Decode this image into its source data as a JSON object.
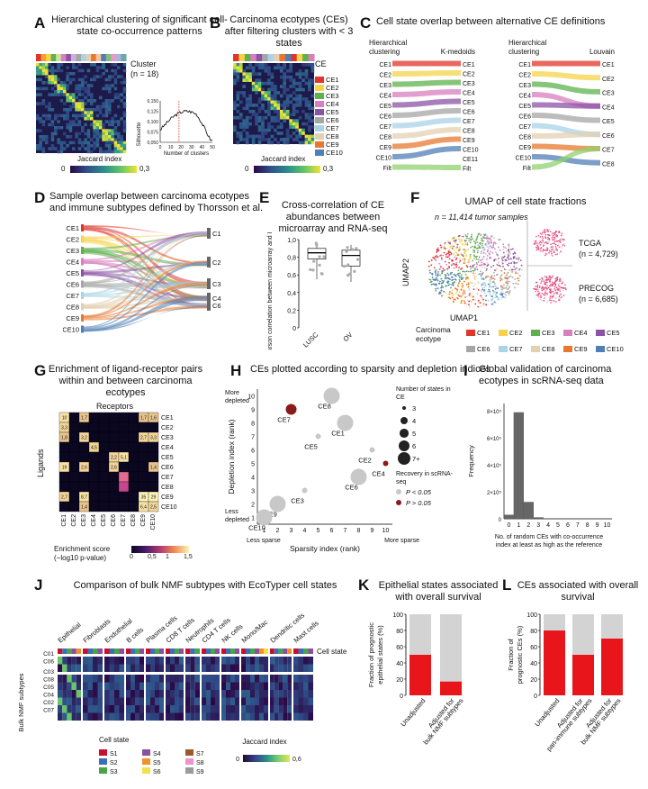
{
  "panels": {
    "A": {
      "letter": "A",
      "title": "Hierarchical clustering of significant cell-state co-occurrence patterns",
      "cluster_label": "Cluster",
      "n_label": "(n = 18)",
      "cbar_label": "Jaccard index",
      "cbar_min": "0",
      "cbar_max": "0,3",
      "inset": {
        "ylabel": "Silhouette",
        "xlabel": "Number of clusters",
        "yticks": [
          "0,150",
          "0,125",
          "0,100",
          "0,075",
          "0,050"
        ],
        "xticks": [
          "0",
          "10",
          "20",
          "30",
          "40",
          "50"
        ]
      }
    },
    "B": {
      "letter": "B",
      "title": "Carcinoma ecotypes (CEs) after filtering clusters with < 3 states",
      "ce_label": "CE",
      "cbar_label": "Jaccard index",
      "cbar_min": "0",
      "cbar_max": "0,3",
      "legend": [
        "CE1",
        "CE2",
        "CE3",
        "CE4",
        "CE5",
        "CE6",
        "CE7",
        "CE8",
        "CE9",
        "CE10"
      ]
    },
    "C": {
      "letter": "C",
      "title": "Cell state overlap between alternative CE definitions",
      "left": {
        "hdr_left": "Hierarchical clustering",
        "hdr_right": "K-medoids",
        "labels_left": [
          "CE1",
          "CE2",
          "CE3",
          "CE4",
          "CE5",
          "CE6",
          "CE7",
          "CE8",
          "CE9",
          "CE10",
          "Filt"
        ],
        "labels_right": [
          "CE1",
          "CE2",
          "CE3",
          "CE4",
          "CE5",
          "CE6",
          "CE7",
          "CE8",
          "CE9",
          "CE10",
          "CE11",
          "Filt"
        ]
      },
      "right": {
        "hdr_left": "Hierarchical clustering",
        "hdr_right": "Louvain",
        "labels_left": [
          "CE1",
          "CE2",
          "CE3",
          "CE4",
          "CE5",
          "CE6",
          "CE7",
          "CE8",
          "CE9",
          "CE10",
          "Filt"
        ],
        "labels_right": [
          "CE1",
          "CE2",
          "CE3",
          "CE4",
          "CE5",
          "CE6",
          "CE7",
          "CE8"
        ]
      }
    },
    "D": {
      "letter": "D",
      "title": "Sample overlap between carcinoma ecotypes and immune subtypes defined by Thorsson et al.",
      "labels_left": [
        "CE1",
        "CE2",
        "CE3",
        "CE4",
        "CE5",
        "CE6",
        "CE7",
        "CE8",
        "CE9",
        "CE10"
      ],
      "labels_right": [
        "C1",
        "C2",
        "C3",
        "C4",
        "C6"
      ]
    },
    "E": {
      "letter": "E",
      "title": "Cross-correlation of CE abundances between microarray and RNA-seq",
      "ylabel": "Pearson correlation between microarray and RNA-seq",
      "yticks": [
        "1,0",
        "0,8",
        "0,6",
        "0,4",
        "0,2",
        "0"
      ],
      "categories": [
        "LUSC",
        "OV"
      ]
    },
    "F": {
      "letter": "F",
      "title": "UMAP of cell state fractions",
      "n_label": "n = 11,414 tumor samples",
      "xlabel": "UMAP1",
      "ylabel": "UMAP2",
      "tcga": "TCGA",
      "tcga_n": "(n = 4,729)",
      "precog": "PRECOG",
      "precog_n": "(n = 6,685)",
      "legend_title": "Carcinoma ecotype",
      "legend": [
        "CE1",
        "CE2",
        "CE3",
        "CE4",
        "CE5",
        "CE6",
        "CE7",
        "CE8",
        "CE9",
        "CE10"
      ]
    },
    "G": {
      "letter": "G",
      "title": "Enrichment of ligand-receptor pairs within and between carcinoma ecotypes",
      "receptors": "Receptors",
      "ligands": "Ligands",
      "rows": [
        "CE1",
        "CE2",
        "CE3",
        "CE4",
        "CE5",
        "CE6",
        "CE7",
        "CE8",
        "CE9",
        "CE10"
      ],
      "cols": [
        "CE1",
        "CE2",
        "CE3",
        "CE4",
        "CE5",
        "CE6",
        "CE7",
        "CE8",
        "CE9",
        "CE10"
      ],
      "cbar_title": "Enrichment score",
      "cbar_sub": "(−log10 p-value)",
      "cbar_ticks": [
        "0",
        "0,5",
        "1",
        "1,5"
      ]
    },
    "H": {
      "letter": "H",
      "title": "CEs plotted according to sparsity and depletion indices",
      "xlabel": "Sparsity index (rank)",
      "ylabel": "Depletion index (rank)",
      "more_depleted": "More depleted",
      "less_depleted": "Less depleted",
      "less_sparse": "Less sparse",
      "more_sparse": "More sparse",
      "size_legend_title": "Number of states in CE",
      "size_legend": [
        "3",
        "4",
        "5",
        "6",
        "7+"
      ],
      "recovery_title": "Recovery in scRNA-seq",
      "recovery": [
        "P < 0.05",
        "P > 0.05"
      ]
    },
    "I": {
      "letter": "I",
      "title": "Global validation of carcinoma ecotypes in scRNA-seq data",
      "ylabel": "Frequency",
      "xlabel": "No. of random CEs with co-occurrence index at least as high as the reference",
      "yticks": [
        "8×10⁵",
        "6×10⁵",
        "4×10⁵",
        "2×10⁵",
        "0"
      ],
      "xticks": [
        "0",
        "1",
        "2",
        "3",
        "4",
        "5",
        "6",
        "7",
        "8",
        "9",
        "10"
      ]
    },
    "J": {
      "letter": "J",
      "title": "Comparison of bulk NMF subtypes with EcoTyper cell states",
      "ylabel": "Bulk NMF subtypes",
      "rows": [
        "C01",
        "C06",
        "C03",
        "C08",
        "C05",
        "C04",
        "C02",
        "C07"
      ],
      "cell_types": [
        "Epithelial",
        "Fibroblasts",
        "Endothelial",
        "B cells",
        "Plasma cells",
        "CD8 T cells",
        "Neutrophils",
        "CD4 T cells",
        "NK cells",
        "Mono/Mac",
        "Dendritic cells",
        "Mast cells"
      ],
      "cell_state": "Cell state",
      "legend_title": "Cell state",
      "states": [
        "S1",
        "S2",
        "S3",
        "S4",
        "S5",
        "S6",
        "S7",
        "S8",
        "S9"
      ],
      "cbar_label": "Jaccard index",
      "cbar_min": "0",
      "cbar_max": "0,6"
    },
    "K": {
      "letter": "K",
      "title": "Epithelial states associated with overall survival",
      "ylabel": "Fraction of prognostic epithelial states (%)",
      "yticks": [
        "100",
        "80",
        "60",
        "40",
        "20",
        "0"
      ],
      "categories": [
        "Unadjusted",
        "Adjusted for bulk NMF subtypes"
      ]
    },
    "L": {
      "letter": "L",
      "title": "CEs associated with overall survival",
      "ylabel": "Fraction of prognostic CEs (%)",
      "yticks": [
        "100",
        "80",
        "60",
        "40",
        "20",
        "0"
      ],
      "categories": [
        "Unadjusted",
        "Adjusted for pan-immune subtypes",
        "Adjusted for bulk NMF subtypes"
      ]
    }
  },
  "colors": {
    "CE1": "#e0352b",
    "CE2": "#f5d34b",
    "CE3": "#5fb14f",
    "CE4": "#d77fbf",
    "CE5": "#8b53a6",
    "CE6": "#a6a6a6",
    "CE7": "#a9d3e7",
    "CE8": "#e3d0b1",
    "CE9": "#e8782f",
    "CE10": "#4f7fb5",
    "S1": "#c8102e",
    "S2": "#3c6fb6",
    "S3": "#4aa44a",
    "S4": "#8a4fa1",
    "S5": "#f0922a",
    "S6": "#f2df4b",
    "S7": "#9b5a2a",
    "S8": "#ef93c8",
    "S9": "#9a9a9a"
  },
  "chart_data": [
    {
      "panel": "E",
      "type": "box",
      "categories": [
        "LUSC",
        "OV"
      ],
      "ylim": [
        0,
        1.0
      ],
      "medians": [
        0.85,
        0.82
      ]
    },
    {
      "panel": "H",
      "type": "scatter",
      "xlim": [
        1,
        10
      ],
      "ylim": [
        1,
        10
      ],
      "points": [
        {
          "label": "CE1",
          "x": 7,
          "y": 8,
          "states": "7+",
          "recovery": "P < 0.05"
        },
        {
          "label": "CE2",
          "x": 9,
          "y": 6,
          "states": "3",
          "recovery": "P < 0.05"
        },
        {
          "label": "CE3",
          "x": 4,
          "y": 3,
          "states": "3",
          "recovery": "P < 0.05"
        },
        {
          "label": "CE4",
          "x": 10,
          "y": 5,
          "states": "3",
          "recovery": "P > 0.05"
        },
        {
          "label": "CE5",
          "x": 5,
          "y": 7,
          "states": "3",
          "recovery": "P < 0.05"
        },
        {
          "label": "CE6",
          "x": 8,
          "y": 4,
          "states": "7+",
          "recovery": "P < 0.05"
        },
        {
          "label": "CE7",
          "x": 3,
          "y": 9,
          "states": "5",
          "recovery": "P > 0.05"
        },
        {
          "label": "CE8",
          "x": 6,
          "y": 10,
          "states": "7+",
          "recovery": "P < 0.05"
        },
        {
          "label": "CE9",
          "x": 2,
          "y": 2,
          "states": "7+",
          "recovery": "P < 0.05"
        },
        {
          "label": "CE10",
          "x": 1,
          "y": 1,
          "states": "7+",
          "recovery": "P < 0.05"
        }
      ]
    },
    {
      "panel": "I",
      "type": "bar",
      "categories": [
        "0",
        "1",
        "2",
        "3",
        "4",
        "5",
        "6",
        "7",
        "8",
        "9",
        "10"
      ],
      "values": [
        30000,
        830000,
        130000,
        10000,
        0,
        0,
        0,
        0,
        0,
        0,
        0
      ],
      "ylabel": "Frequency"
    },
    {
      "panel": "K",
      "type": "bar",
      "categories": [
        "Unadjusted",
        "Adjusted for bulk NMF subtypes"
      ],
      "values": [
        50,
        17
      ],
      "ylim": [
        0,
        100
      ]
    },
    {
      "panel": "L",
      "type": "bar",
      "categories": [
        "Unadjusted",
        "Adjusted for pan-immune subtypes",
        "Adjusted for bulk NMF subtypes"
      ],
      "values": [
        80,
        50,
        70
      ],
      "ylim": [
        0,
        100
      ]
    }
  ],
  "heatG": {
    "rows": [
      [
        "10",
        "",
        "1,7",
        "",
        "",
        "",
        "",
        "",
        "1,7",
        "1,6"
      ],
      [
        "3,3",
        "",
        "",
        "",
        "",
        "",
        "",
        "",
        "",
        ""
      ],
      [
        "1,8",
        "",
        "3,2",
        "",
        "",
        "",
        "",
        "",
        "2,7",
        "3,3"
      ],
      [
        "",
        "",
        "",
        "4,5",
        "",
        "",
        "",
        "",
        "",
        ""
      ],
      [
        "",
        "",
        "",
        "",
        "",
        "2,2",
        "5,1",
        "",
        "",
        ""
      ],
      [
        "19",
        "",
        "2,6",
        "",
        "",
        "2,6",
        "",
        "",
        "",
        "1,4"
      ],
      [
        "",
        "",
        "",
        "",
        "",
        "",
        "",
        "",
        "",
        ""
      ],
      [
        "",
        "",
        "",
        "",
        "",
        "",
        "",
        "",
        "",
        ""
      ],
      [
        "2,7",
        "",
        "8,7",
        "",
        "",
        "",
        "",
        "",
        "35",
        "29"
      ],
      [
        "",
        "",
        "1,4",
        "",
        "",
        "",
        "",
        "",
        "6,4",
        "2,5"
      ]
    ]
  }
}
